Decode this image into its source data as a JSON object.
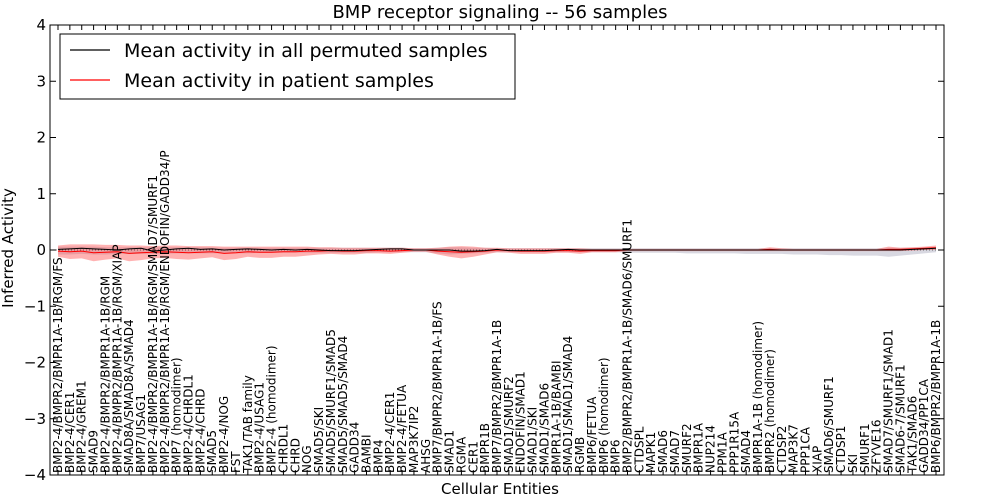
{
  "chart_data": {
    "type": "line",
    "title": "BMP receptor signaling -- 56 samples",
    "xlabel": "Cellular Entities",
    "ylabel": "Inferred Activity",
    "ylim": [
      -4,
      4
    ],
    "yticks": [
      -4,
      -3,
      -2,
      -1,
      0,
      1,
      2,
      3,
      4
    ],
    "grid": false,
    "legend_position": "top-left",
    "colors": {
      "permuted_line": "#000000",
      "patient_line": "#ff0000",
      "patient_band": "#ff5555",
      "permuted_band": "#b8b8c8"
    },
    "categories": [
      "BMP2-4/BMPR2/BMPR1A-1B/RGM/FS",
      "BMP2-4/CER1",
      "BMP2-4/GREM1",
      "SMAD9",
      "BMP2-4/BMPR2/BMPR1A-1B/RGM",
      "BMP2-4/BMPR2/BMPR1A-1B/RGM/XIAP",
      "SMAD8A/SMAD8A/SMAD4",
      "BMP7/USAG1",
      "BMP2-4/BMPR2/BMPR1A-1B/RGM/SMAD7/SMURF1",
      "BMP2-4/BMPR2/BMPR1A-1B/RGM/ENDOFIN/GADD34/P",
      "BMP7 (homodimer)",
      "BMP2-4/CHRDL1",
      "BMP2-4/CHRD",
      "SMAD5",
      "BMP2-4/NOG",
      "FST",
      "TAK1/TAB family",
      "BMP2-4/USAG1",
      "BMP2-4 (homodimer)",
      "CHRDL1",
      "CHRD",
      "NOG",
      "SMAD5/SKI",
      "SMAD5/SMURF1/SMAD5",
      "SMAD5/SMAD5/SMAD4",
      "GADD34",
      "BAMBI",
      "BMP4",
      "BMP2-4/CER1",
      "BMP2-4/FETUA",
      "MAP3K7IP2",
      "AHSG",
      "BMP7/BMPR2/BMPR1A-1B/FS",
      "SMAD1",
      "RGMA",
      "CER1",
      "BMPR1B",
      "BMP7/BMPR2/BMPR1A-1B",
      "SMAD1/SMURF2",
      "ENDOFIN/SMAD1",
      "SMAD1/SKI",
      "SMAD1/SMAD6",
      "BMPR1A-1B/BAMBI",
      "SMAD1/SMAD1/SMAD4",
      "RGMB",
      "BMP6/FETUA",
      "BMP6 (homodimer)",
      "BMP6",
      "BMP2/BMPR2/BMPR1A-1B/SMAD6/SMURF1",
      "CTDSPL",
      "MAPK1",
      "SMAD6",
      "SMAD7",
      "SMURF2",
      "BMPR1A",
      "NUP214",
      "PPM1A",
      "PPP1R15A",
      "SMAD4",
      "BMPR1A-1B (homodimer)",
      "BMPR2 (homodimer)",
      "CTDSP2",
      "MAP3K7",
      "PPP1CA",
      "XIAP",
      "SMAD6/SMURF1",
      "CTDSP1",
      "SKI",
      "SMURF1",
      "ZFYVE16",
      "SMAD7/SMURF1/SMAD1",
      "SMAD6-7/SMURF1",
      "TAK1/SMAD6",
      "GADD34/PP1CA",
      "BMP6/BMPR2/BMPR1A-1B"
    ],
    "series": [
      {
        "name": "Mean activity in all permuted samples",
        "color": "#000000",
        "values": [
          0.01,
          0.02,
          0.03,
          0.02,
          0.01,
          0.0,
          0.02,
          0.03,
          -0.02,
          0.0,
          0.02,
          0.03,
          0.01,
          0.02,
          0.0,
          0.01,
          0.02,
          0.01,
          0.0,
          0.01,
          0.0,
          0.01,
          0.0,
          -0.01,
          -0.01,
          -0.01,
          0.0,
          0.01,
          0.02,
          0.02,
          0.0,
          0.0,
          0.0,
          0.0,
          -0.02,
          -0.02,
          -0.01,
          0.01,
          -0.01,
          -0.01,
          -0.01,
          -0.01,
          0.0,
          0.01,
          0.0,
          0.0,
          0.0,
          0.0,
          0.0,
          0.0,
          0.0,
          0.0,
          0.0,
          0.0,
          0.0,
          0.0,
          0.0,
          0.0,
          0.0,
          0.0,
          0.0,
          0.0,
          0.0,
          0.0,
          0.0,
          0.0,
          0.0,
          0.0,
          0.0,
          0.0,
          0.0,
          0.0,
          0.01,
          0.02,
          0.03
        ]
      },
      {
        "name": "Mean activity in patient samples",
        "color": "#ff0000",
        "values": [
          -0.02,
          -0.03,
          -0.02,
          -0.05,
          -0.04,
          -0.03,
          -0.06,
          -0.05,
          -0.04,
          -0.03,
          -0.04,
          -0.05,
          -0.04,
          -0.03,
          -0.06,
          -0.05,
          -0.03,
          -0.04,
          -0.04,
          -0.03,
          -0.03,
          -0.02,
          -0.02,
          -0.01,
          -0.02,
          -0.02,
          -0.01,
          -0.01,
          -0.02,
          -0.01,
          0.0,
          0.0,
          -0.02,
          -0.03,
          -0.04,
          -0.03,
          -0.02,
          0.0,
          -0.01,
          -0.02,
          -0.02,
          -0.02,
          -0.01,
          -0.01,
          -0.02,
          -0.01,
          -0.01,
          -0.01,
          0.0,
          0.0,
          0.0,
          0.0,
          0.0,
          0.0,
          0.0,
          0.0,
          0.0,
          0.0,
          0.0,
          0.0,
          0.01,
          0.0,
          0.0,
          0.0,
          0.0,
          0.0,
          0.0,
          0.0,
          0.0,
          0.0,
          0.01,
          0.01,
          0.02,
          0.03,
          0.04
        ]
      }
    ],
    "patient_band": {
      "lower": [
        -0.12,
        -0.16,
        -0.15,
        -0.2,
        -0.17,
        -0.15,
        -0.2,
        -0.18,
        -0.15,
        -0.14,
        -0.16,
        -0.17,
        -0.15,
        -0.13,
        -0.18,
        -0.16,
        -0.12,
        -0.14,
        -0.14,
        -0.12,
        -0.12,
        -0.1,
        -0.08,
        -0.07,
        -0.08,
        -0.08,
        -0.06,
        -0.06,
        -0.07,
        -0.05,
        -0.03,
        -0.03,
        -0.08,
        -0.12,
        -0.15,
        -0.12,
        -0.08,
        -0.04,
        -0.05,
        -0.07,
        -0.07,
        -0.07,
        -0.05,
        -0.05,
        -0.07,
        -0.04,
        -0.04,
        -0.04,
        -0.02,
        -0.02,
        -0.02,
        -0.02,
        -0.02,
        -0.02,
        -0.02,
        -0.02,
        -0.02,
        -0.02,
        -0.02,
        -0.02,
        -0.02,
        -0.02,
        -0.02,
        -0.02,
        -0.02,
        -0.02,
        -0.02,
        -0.02,
        -0.02,
        -0.02,
        -0.02,
        -0.02,
        -0.01,
        0.0,
        0.0
      ],
      "upper": [
        0.08,
        0.1,
        0.1,
        0.1,
        0.09,
        0.09,
        0.08,
        0.08,
        0.07,
        0.08,
        0.08,
        0.07,
        0.07,
        0.07,
        0.06,
        0.06,
        0.06,
        0.06,
        0.06,
        0.06,
        0.06,
        0.06,
        0.05,
        0.05,
        0.04,
        0.04,
        0.04,
        0.04,
        0.04,
        0.04,
        0.03,
        0.03,
        0.04,
        0.06,
        0.07,
        0.06,
        0.04,
        0.04,
        0.03,
        0.03,
        0.03,
        0.03,
        0.03,
        0.03,
        0.03,
        0.02,
        0.02,
        0.02,
        0.02,
        0.02,
        0.02,
        0.02,
        0.02,
        0.02,
        0.02,
        0.02,
        0.02,
        0.02,
        0.02,
        0.02,
        0.05,
        0.03,
        0.02,
        0.02,
        0.02,
        0.02,
        0.02,
        0.02,
        0.02,
        0.02,
        0.06,
        0.04,
        0.05,
        0.06,
        0.08
      ]
    },
    "permuted_band": {
      "lower": [
        -0.08,
        -0.08,
        -0.07,
        -0.08,
        -0.08,
        -0.07,
        -0.07,
        -0.07,
        -0.07,
        -0.07,
        -0.06,
        -0.06,
        -0.06,
        -0.06,
        -0.06,
        -0.06,
        -0.06,
        -0.05,
        -0.05,
        -0.05,
        -0.05,
        -0.05,
        -0.05,
        -0.05,
        -0.05,
        -0.05,
        -0.05,
        -0.04,
        -0.04,
        -0.04,
        -0.04,
        -0.04,
        -0.06,
        -0.08,
        -0.07,
        -0.06,
        -0.05,
        -0.04,
        -0.04,
        -0.04,
        -0.04,
        -0.04,
        -0.04,
        -0.04,
        -0.04,
        -0.04,
        -0.04,
        -0.04,
        -0.05,
        -0.05,
        -0.05,
        -0.05,
        -0.05,
        -0.06,
        -0.06,
        -0.06,
        -0.06,
        -0.06,
        -0.07,
        -0.07,
        -0.07,
        -0.07,
        -0.08,
        -0.08,
        -0.08,
        -0.09,
        -0.09,
        -0.1,
        -0.1,
        -0.1,
        -0.12,
        -0.1,
        -0.08,
        -0.06,
        -0.04
      ],
      "upper": [
        0.06,
        0.06,
        0.06,
        0.06,
        0.05,
        0.05,
        0.05,
        0.05,
        0.05,
        0.05,
        0.05,
        0.05,
        0.05,
        0.04,
        0.04,
        0.04,
        0.04,
        0.04,
        0.04,
        0.04,
        0.04,
        0.04,
        0.04,
        0.04,
        0.04,
        0.04,
        0.04,
        0.04,
        0.04,
        0.04,
        0.03,
        0.03,
        0.04,
        0.05,
        0.05,
        0.04,
        0.04,
        0.03,
        0.03,
        0.03,
        0.03,
        0.03,
        0.03,
        0.03,
        0.03,
        0.03,
        0.03,
        0.03,
        0.03,
        0.03,
        0.03,
        0.03,
        0.03,
        0.03,
        0.03,
        0.03,
        0.03,
        0.03,
        0.03,
        0.03,
        0.03,
        0.03,
        0.03,
        0.03,
        0.03,
        0.03,
        0.03,
        0.03,
        0.03,
        0.03,
        0.04,
        0.04,
        0.04,
        0.04,
        0.05
      ]
    }
  }
}
